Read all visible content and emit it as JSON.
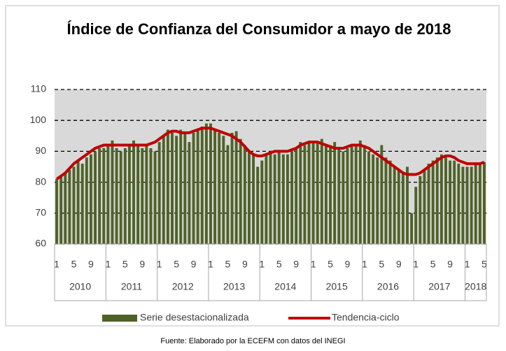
{
  "chart_data": {
    "type": "bar_line",
    "title": "Índice de Confianza del Consumidor a mayo de 2018",
    "source": "Fuente: Elaborado por la ECEFM con datos del INEGI",
    "categories": [
      "1",
      null,
      null,
      null,
      "5",
      null,
      null,
      null,
      "9",
      null,
      null,
      null,
      "1",
      null,
      null,
      null,
      "5",
      null,
      null,
      null,
      "9",
      null,
      null,
      null,
      "1",
      null,
      null,
      null,
      "5",
      null,
      null,
      null,
      "9",
      null,
      null,
      null,
      "1",
      null,
      null,
      null,
      "5",
      null,
      null,
      null,
      "9",
      null,
      null,
      null,
      "1",
      null,
      null,
      null,
      "5",
      null,
      null,
      null,
      "9",
      null,
      null,
      null,
      "1",
      null,
      null,
      null,
      "5",
      null,
      null,
      null,
      "9",
      null,
      null,
      null,
      "1",
      null,
      null,
      null,
      "5",
      null,
      null,
      null,
      "9",
      null,
      null,
      null,
      "1",
      null,
      null,
      null,
      "5",
      null,
      null,
      null,
      "9",
      null,
      null,
      null,
      "1",
      null,
      null,
      null,
      "5"
    ],
    "years": [
      "2010",
      "2011",
      "2012",
      "2013",
      "2014",
      "2015",
      "2016",
      "2017",
      "2018"
    ],
    "series": [
      {
        "name": "Serie desestacionalizada",
        "type": "bar",
        "color": "#4f6228",
        "values": [
          81,
          82,
          83,
          84,
          85,
          87,
          86,
          88,
          89,
          90,
          91,
          91,
          92,
          93.5,
          91,
          90,
          91,
          92,
          93.5,
          92,
          91,
          92,
          91,
          90,
          93,
          95,
          97,
          96,
          95,
          97,
          96,
          93,
          96,
          97,
          98,
          99,
          99,
          97,
          96,
          95,
          92,
          96,
          96.5,
          94,
          92,
          90,
          89,
          85,
          87,
          89,
          90,
          89,
          90,
          89,
          89,
          90,
          91,
          93,
          92,
          93,
          93,
          93,
          94,
          92,
          92,
          93,
          91,
          90,
          91,
          92,
          92,
          93.5,
          92,
          90,
          89,
          88,
          92,
          88,
          87,
          85,
          84,
          83,
          85,
          70,
          78.5,
          82,
          84,
          86,
          87,
          88,
          89,
          88,
          87,
          87,
          86,
          85,
          85,
          85,
          86,
          86,
          86.5
        ]
      },
      {
        "name": "Tendencia-ciclo",
        "type": "line",
        "color": "#c00000",
        "values": [
          81,
          82,
          83,
          84.5,
          86,
          87,
          88,
          89,
          90,
          91,
          91.5,
          92,
          92,
          92,
          92,
          92,
          92,
          92,
          92,
          92,
          92,
          92,
          92.5,
          93,
          94,
          95,
          96,
          96.5,
          96.5,
          96,
          96,
          96,
          96.5,
          97,
          97.5,
          97.5,
          97.5,
          97,
          96.5,
          96,
          95.5,
          95,
          94,
          93,
          91.5,
          90,
          89,
          88.5,
          88.5,
          89,
          89.5,
          90,
          90,
          90,
          90,
          90.5,
          91,
          92,
          92.5,
          93,
          93,
          93,
          92.5,
          92,
          91.5,
          91,
          91,
          91,
          91.5,
          92,
          92,
          92,
          91.5,
          91,
          90,
          89,
          88,
          87,
          86,
          85,
          84,
          83,
          82.5,
          82.5,
          82.5,
          83,
          84,
          85,
          86,
          87,
          88,
          88.5,
          88.5,
          88,
          87,
          86.5,
          86,
          86,
          86,
          86,
          86.5
        ]
      }
    ],
    "ylim": [
      60,
      110
    ],
    "yticks": [
      60,
      70,
      80,
      90,
      100,
      110
    ],
    "grid": true
  }
}
